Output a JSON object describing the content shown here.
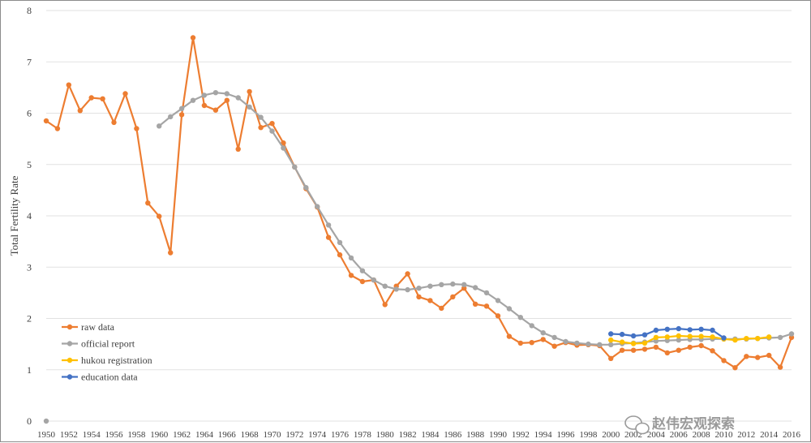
{
  "watermark": {
    "text": "赵伟宏观探索"
  },
  "chart_data": {
    "type": "line",
    "ylabel": "Total Fertility Rate",
    "xlabel": "",
    "ylim": [
      0,
      8
    ],
    "yticks": [
      "0",
      "1",
      "2",
      "3",
      "4",
      "5",
      "6",
      "7",
      "8"
    ],
    "x": [
      1950,
      1951,
      1952,
      1953,
      1954,
      1955,
      1956,
      1957,
      1958,
      1959,
      1960,
      1961,
      1962,
      1963,
      1964,
      1965,
      1966,
      1967,
      1968,
      1969,
      1970,
      1971,
      1972,
      1973,
      1974,
      1975,
      1976,
      1977,
      1978,
      1979,
      1980,
      1981,
      1982,
      1983,
      1984,
      1985,
      1986,
      1987,
      1988,
      1989,
      1990,
      1991,
      1992,
      1993,
      1994,
      1995,
      1996,
      1997,
      1998,
      1999,
      2000,
      2001,
      2002,
      2003,
      2004,
      2005,
      2006,
      2007,
      2008,
      2009,
      2010,
      2011,
      2012,
      2013,
      2014,
      2015,
      2016
    ],
    "xticks": [
      "1950",
      "1952",
      "1954",
      "1956",
      "1958",
      "1960",
      "1962",
      "1964",
      "1966",
      "1968",
      "1970",
      "1972",
      "1974",
      "1976",
      "1978",
      "1980",
      "1982",
      "1984",
      "1986",
      "1988",
      "1990",
      "1992",
      "1994",
      "1996",
      "1998",
      "2000",
      "2002",
      "2004",
      "2006",
      "2008",
      "2010",
      "2012",
      "2014",
      "2016"
    ],
    "grid": true,
    "legend_position": "bottom-left",
    "series": [
      {
        "name": "raw data",
        "color": "#ED7D31",
        "values": [
          5.85,
          5.7,
          6.55,
          6.05,
          6.3,
          6.28,
          5.82,
          6.38,
          5.7,
          4.25,
          3.99,
          3.28,
          5.97,
          7.47,
          6.15,
          6.06,
          6.25,
          5.3,
          6.42,
          5.72,
          5.8,
          5.42,
          4.95,
          4.53,
          4.17,
          3.58,
          3.24,
          2.84,
          2.72,
          2.75,
          2.27,
          2.63,
          2.87,
          2.42,
          2.35,
          2.2,
          2.42,
          2.59,
          2.28,
          2.24,
          2.05,
          1.65,
          1.52,
          1.53,
          1.59,
          1.46,
          1.53,
          1.48,
          1.49,
          1.47,
          1.22,
          1.38,
          1.38,
          1.4,
          1.44,
          1.33,
          1.38,
          1.44,
          1.47,
          1.37,
          1.18,
          1.04,
          1.26,
          1.24,
          1.28,
          1.05,
          1.63
        ]
      },
      {
        "name": "official report",
        "color": "#A5A5A5",
        "values": [
          0,
          null,
          null,
          null,
          null,
          null,
          null,
          null,
          null,
          null,
          5.75,
          5.93,
          6.09,
          6.25,
          6.35,
          6.4,
          6.38,
          6.3,
          6.12,
          5.92,
          5.65,
          5.32,
          4.95,
          4.55,
          4.18,
          3.82,
          3.48,
          3.18,
          2.93,
          2.75,
          2.63,
          2.57,
          2.56,
          2.59,
          2.63,
          2.66,
          2.67,
          2.66,
          2.6,
          2.5,
          2.35,
          2.19,
          2.02,
          1.86,
          1.72,
          1.63,
          1.55,
          1.52,
          1.5,
          1.49,
          1.49,
          1.51,
          1.52,
          1.54,
          1.56,
          1.57,
          1.58,
          1.59,
          1.59,
          1.6,
          1.6,
          1.6,
          1.6,
          1.61,
          1.62,
          1.63,
          1.7
        ]
      },
      {
        "name": "hukou registration",
        "color": "#FFC000",
        "values": [
          null,
          null,
          null,
          null,
          null,
          null,
          null,
          null,
          null,
          null,
          null,
          null,
          null,
          null,
          null,
          null,
          null,
          null,
          null,
          null,
          null,
          null,
          null,
          null,
          null,
          null,
          null,
          null,
          null,
          null,
          null,
          null,
          null,
          null,
          null,
          null,
          null,
          null,
          null,
          null,
          null,
          null,
          null,
          null,
          null,
          null,
          null,
          null,
          null,
          null,
          1.58,
          1.54,
          1.51,
          1.52,
          1.63,
          1.64,
          1.66,
          1.65,
          1.65,
          1.64,
          1.6,
          1.58,
          1.61,
          1.61,
          1.64,
          null,
          null
        ]
      },
      {
        "name": "education data",
        "color": "#4472C4",
        "values": [
          null,
          null,
          null,
          null,
          null,
          null,
          null,
          null,
          null,
          null,
          null,
          null,
          null,
          null,
          null,
          null,
          null,
          null,
          null,
          null,
          null,
          null,
          null,
          null,
          null,
          null,
          null,
          null,
          null,
          null,
          null,
          null,
          null,
          null,
          null,
          null,
          null,
          null,
          null,
          null,
          null,
          null,
          null,
          null,
          null,
          null,
          null,
          null,
          null,
          null,
          1.7,
          1.69,
          1.66,
          1.68,
          1.77,
          1.79,
          1.8,
          1.78,
          1.79,
          1.77,
          1.62,
          null,
          null,
          null,
          null,
          null,
          null
        ]
      }
    ]
  }
}
